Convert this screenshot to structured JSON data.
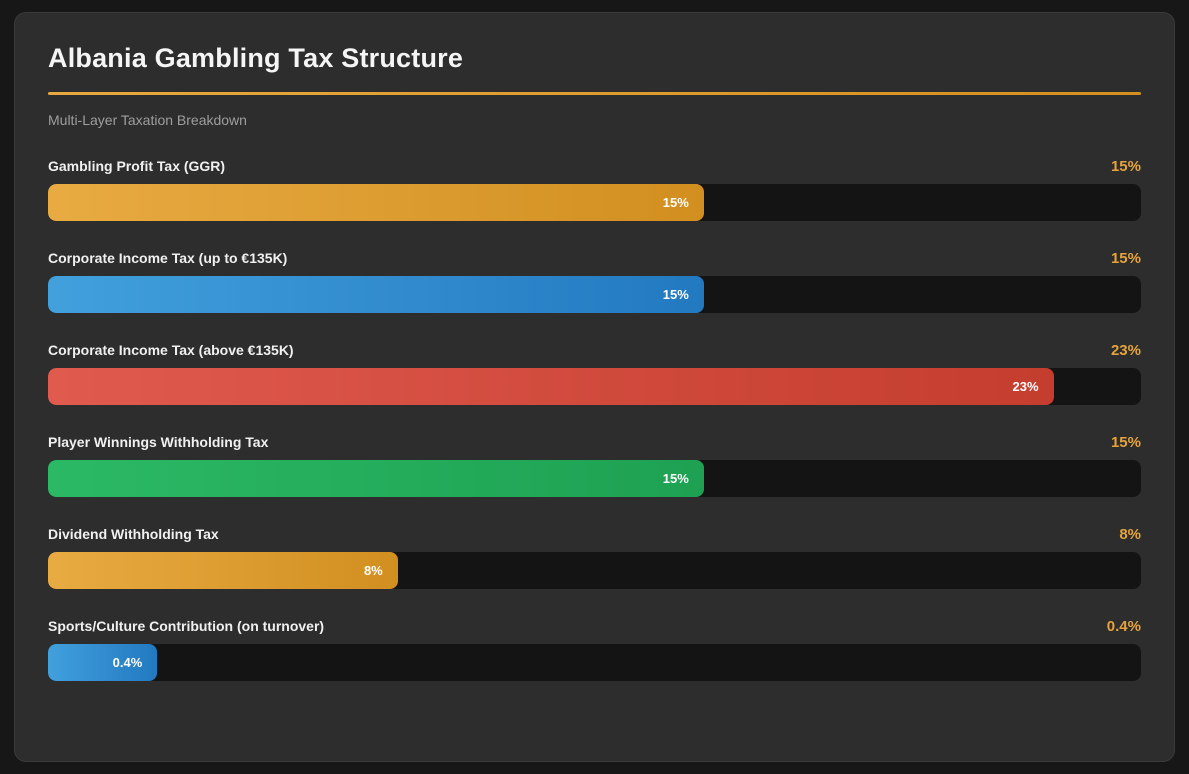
{
  "page": {
    "title": "Albania Gambling Tax Structure",
    "subtitle": "Multi-Layer Taxation Breakdown"
  },
  "colors": {
    "accent": "#e5a33c",
    "page_bg": "#171717",
    "card_bg": "#2d2d2d",
    "track_bg": "#141414",
    "divider_gradient_start": "#e7a93f",
    "divider_gradient_end": "#d3901f"
  },
  "chart_data": {
    "type": "bar",
    "orientation": "horizontal",
    "title": "Albania Gambling Tax Structure",
    "subtitle": "Multi-Layer Taxation Breakdown",
    "xlabel": "",
    "ylabel": "",
    "xlim": [
      0,
      25
    ],
    "grid": false,
    "legend": false,
    "min_fill_pct": 10,
    "categories": [
      "Gambling Profit Tax (GGR)",
      "Corporate Income Tax (up to €135K)",
      "Corporate Income Tax (above €135K)",
      "Player Winnings Withholding Tax",
      "Dividend Withholding Tax",
      "Sports/Culture Contribution (on turnover)"
    ],
    "values": [
      15,
      15,
      23,
      15,
      8,
      0.4
    ],
    "rows": [
      {
        "label": "Gambling Profit Tax (GGR)",
        "value": 15,
        "value_label": "15%",
        "color_start": "#e8ab42",
        "color_end": "#d28f20"
      },
      {
        "label": "Corporate Income Tax (up to €135K)",
        "value": 15,
        "value_label": "15%",
        "color_start": "#42a0dd",
        "color_end": "#2279c0"
      },
      {
        "label": "Corporate Income Tax (above €135K)",
        "value": 23,
        "value_label": "23%",
        "color_start": "#e05a4e",
        "color_end": "#c43d2e"
      },
      {
        "label": "Player Winnings Withholding Tax",
        "value": 15,
        "value_label": "15%",
        "color_start": "#2bb965",
        "color_end": "#1ea152"
      },
      {
        "label": "Dividend Withholding Tax",
        "value": 8,
        "value_label": "8%",
        "color_start": "#e8ab42",
        "color_end": "#d28f20"
      },
      {
        "label": "Sports/Culture Contribution (on turnover)",
        "value": 0.4,
        "value_label": "0.4%",
        "color_start": "#42a0dd",
        "color_end": "#2279c0"
      }
    ]
  }
}
